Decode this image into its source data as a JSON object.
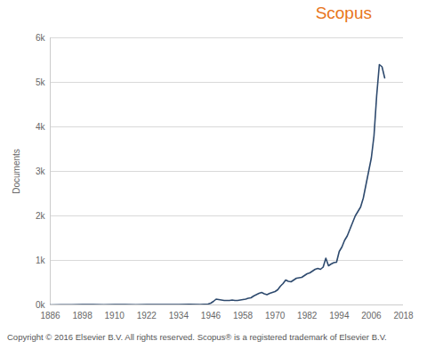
{
  "chart_data": {
    "type": "line",
    "title": "Scopus",
    "caption": "Copyright © 2016 Elsevier B.V. All rights reserved. Scopus® is a registered trademark of Elsevier B.V.",
    "y_label": "Documents",
    "x": [
      1886,
      1890,
      1894,
      1898,
      1902,
      1906,
      1910,
      1914,
      1918,
      1922,
      1926,
      1930,
      1934,
      1938,
      1942,
      1945,
      1946,
      1947,
      1948,
      1949,
      1950,
      1951,
      1952,
      1953,
      1954,
      1955,
      1956,
      1957,
      1958,
      1959,
      1960,
      1961,
      1962,
      1963,
      1964,
      1965,
      1966,
      1967,
      1968,
      1969,
      1970,
      1971,
      1972,
      1973,
      1974,
      1975,
      1976,
      1977,
      1978,
      1979,
      1980,
      1981,
      1982,
      1983,
      1984,
      1985,
      1986,
      1987,
      1988,
      1989,
      1990,
      1991,
      1992,
      1993,
      1994,
      1995,
      1996,
      1997,
      1998,
      1999,
      2000,
      2001,
      2002,
      2003,
      2004,
      2005,
      2006,
      2007,
      2008,
      2009,
      2010,
      2011
    ],
    "values": [
      0,
      5,
      5,
      10,
      10,
      5,
      10,
      10,
      5,
      10,
      10,
      10,
      10,
      15,
      10,
      20,
      40,
      80,
      130,
      120,
      110,
      100,
      100,
      100,
      110,
      100,
      100,
      110,
      120,
      130,
      150,
      160,
      200,
      230,
      260,
      280,
      250,
      230,
      260,
      280,
      300,
      340,
      420,
      480,
      560,
      530,
      520,
      560,
      600,
      610,
      620,
      660,
      700,
      720,
      760,
      800,
      820,
      800,
      850,
      1050,
      880,
      920,
      950,
      960,
      1200,
      1300,
      1450,
      1550,
      1700,
      1850,
      2000,
      2100,
      2200,
      2400,
      2700,
      3000,
      3300,
      3800,
      4700,
      5400,
      5350,
      5100
    ],
    "color": "#2e4a6e",
    "xlim": [
      1886,
      2018
    ],
    "xticks": [
      1886,
      1898,
      1910,
      1922,
      1934,
      1946,
      1958,
      1970,
      1982,
      1994,
      2006,
      2018
    ],
    "ylim": [
      0,
      6000
    ],
    "yticks": [
      {
        "value": 0,
        "label": "0k"
      },
      {
        "value": 1000,
        "label": "1k"
      },
      {
        "value": 2000,
        "label": "2k"
      },
      {
        "value": 3000,
        "label": "3k"
      },
      {
        "value": 4000,
        "label": "4k"
      },
      {
        "value": 5000,
        "label": "5k"
      },
      {
        "value": 6000,
        "label": "6k"
      }
    ],
    "grid": true
  }
}
